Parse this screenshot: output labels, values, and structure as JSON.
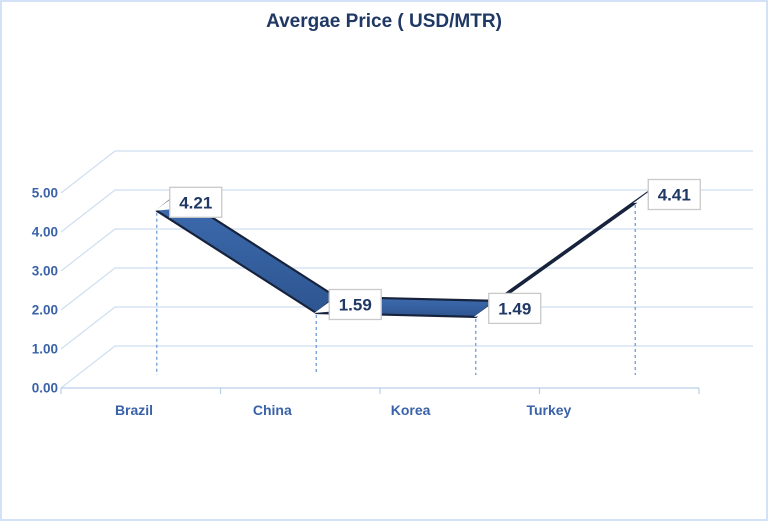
{
  "chart_data": {
    "type": "line",
    "style": "3d-ribbon",
    "title": "Avergae Price ( USD/MTR)",
    "categories": [
      "Brazil",
      "China",
      "Korea",
      "Turkey"
    ],
    "values": [
      4.21,
      1.59,
      1.49,
      4.41
    ],
    "data_labels": [
      "4.21",
      "1.59",
      "1.49",
      "4.41"
    ],
    "xlabel": "",
    "ylabel": "",
    "ylim": [
      0,
      5
    ],
    "ytick_labels": [
      "0.00",
      "1.00",
      "2.00",
      "3.00",
      "4.00",
      "5.00"
    ],
    "grid": true,
    "legend": false,
    "drop_lines": true,
    "colors": {
      "title_text": "#1f3864",
      "axis_text": "#3a62a8",
      "gridline": "#cfdff2",
      "axis_line": "#b9cfe8",
      "drop_line": "#6f9cd6",
      "ribbon_fill_top": "#3e6cb0",
      "ribbon_fill_bottom": "#2d5590",
      "ribbon_edge": "#17233d",
      "label_box_fill": "#ffffff",
      "label_box_border": "#c9c9c9",
      "label_text": "#1f3864",
      "frame_border": "#d3e2f6"
    }
  }
}
